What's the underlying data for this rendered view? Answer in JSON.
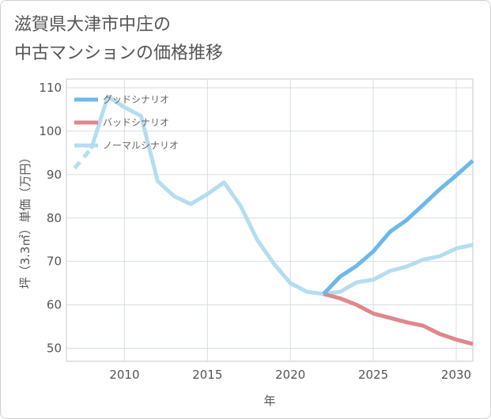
{
  "title": "滋賀県大津市中庄の\n中古マンションの価格推移",
  "chart_data": {
    "type": "line",
    "xlabel": "年",
    "ylabel": "坪（3.3㎡）単価（万円）",
    "xlim": [
      2006.5,
      2031
    ],
    "ylim": [
      47,
      112
    ],
    "xticks": [
      2010,
      2015,
      2020,
      2025,
      2030
    ],
    "yticks": [
      50,
      60,
      70,
      80,
      90,
      100,
      110
    ],
    "grid": true,
    "legend_position": "top-left",
    "series": [
      {
        "name": "グッドシナリオ",
        "color": "#6cb8ec",
        "x": [
          2022,
          2023,
          2024,
          2025,
          2026,
          2027,
          2028,
          2029,
          2030,
          2031
        ],
        "y": [
          62.5,
          66.5,
          69.0,
          72.3,
          76.8,
          79.5,
          83.0,
          86.6,
          89.8,
          93.2
        ]
      },
      {
        "name": "バッドシナリオ",
        "color": "#e0878c",
        "x": [
          2022,
          2023,
          2024,
          2025,
          2026,
          2027,
          2028,
          2029,
          2030,
          2031
        ],
        "y": [
          62.5,
          61.5,
          60.0,
          58.0,
          57.0,
          56.0,
          55.2,
          53.3,
          52.0,
          51.0
        ]
      },
      {
        "name": "ノーマルシナリオ",
        "color": "#b5ddef",
        "x": [
          2007,
          2008,
          2009,
          2010,
          2011,
          2012,
          2013,
          2014,
          2015,
          2016,
          2017,
          2018,
          2019,
          2020,
          2021,
          2022,
          2023,
          2024,
          2025,
          2026,
          2027,
          2028,
          2029,
          2030,
          2031
        ],
        "y": [
          91.5,
          96.0,
          108.0,
          105.5,
          103.5,
          88.5,
          85.0,
          83.2,
          85.5,
          88.2,
          82.8,
          75.0,
          69.5,
          65.0,
          63.0,
          62.5,
          63.0,
          65.2,
          65.8,
          67.8,
          68.8,
          70.4,
          71.2,
          73.0,
          73.8
        ],
        "dashed_until": 2008
      }
    ]
  }
}
